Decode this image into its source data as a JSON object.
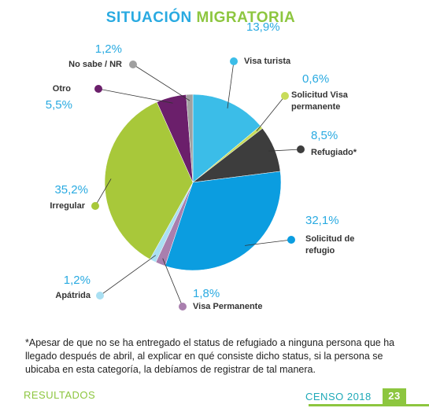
{
  "chart_data": {
    "type": "pie",
    "title": [
      "SITUACIÓN",
      "MIGRATORIA"
    ],
    "categories": [
      "Visa turista",
      "Solicitud Visa permanente",
      "Refugiado*",
      "Solicitud de refugio",
      "Visa Permanente",
      "Apátrida",
      "Irregular",
      "Otro",
      "No sabe / NR"
    ],
    "values": [
      13.9,
      0.6,
      8.5,
      32.1,
      1.8,
      1.2,
      35.2,
      5.5,
      1.2
    ],
    "value_labels": [
      "13,9%",
      "0,6%",
      "8,5%",
      "32,1%",
      "1,8%",
      "1,2%",
      "35,2%",
      "5,5%",
      "1,2%"
    ],
    "colors": [
      "#3bbde8",
      "#c8dc5a",
      "#3d3d3d",
      "#0b9de0",
      "#a97fae",
      "#a9dff2",
      "#a8c83a",
      "#6b1f6b",
      "#a0a0a0"
    ]
  },
  "footnote": "*Apesar de que no se ha entregado el status de refugiado a ninguna persona que ha llegado después de abril, al explicar en qué consiste dicho status, si la persona se ubicaba en esta categoría, la debíamos de registrar de tal manera.",
  "footer": {
    "section": "RESULTADOS",
    "census": "CENSO 2018",
    "page": "23"
  }
}
